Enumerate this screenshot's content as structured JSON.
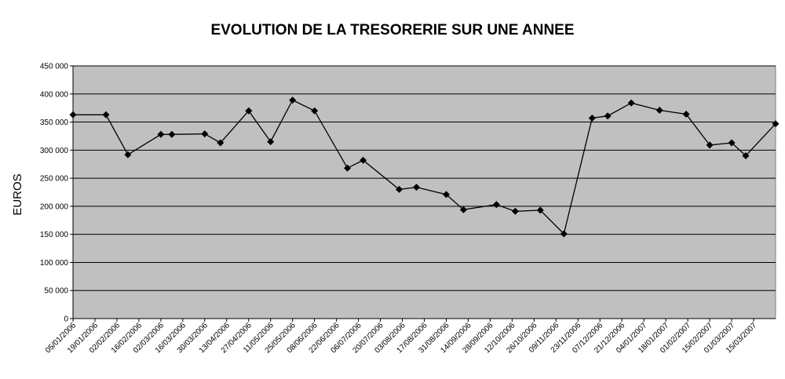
{
  "chart_data": {
    "type": "line",
    "title": "EVOLUTION DE LA TRESORERIE SUR UNE ANNEE",
    "xlabel": "",
    "ylabel": "EUROS",
    "ylim": [
      0,
      450000
    ],
    "yticks": [
      "0",
      "50 000",
      "100 000",
      "150 000",
      "200 000",
      "250 000",
      "300 000",
      "350 000",
      "400 000",
      "450 000"
    ],
    "xtick_labels": [
      "05/01/2006",
      "19/01/2006",
      "02/02/2006",
      "16/02/2006",
      "02/03/2006",
      "16/03/2006",
      "30/03/2006",
      "13/04/2006",
      "27/04/2006",
      "11/05/2006",
      "25/05/2006",
      "08/06/2006",
      "22/06/2006",
      "06/07/2006",
      "20/07/2006",
      "03/08/2006",
      "17/08/2006",
      "31/08/2006",
      "14/09/2006",
      "28/09/2006",
      "12/10/2006",
      "26/10/2006",
      "09/11/2006",
      "23/11/2006",
      "07/12/2006",
      "21/12/2006",
      "04/01/2007",
      "18/01/2007",
      "01/02/2007",
      "15/02/2007",
      "01/03/2007",
      "15/03/2007"
    ],
    "x_range": [
      "2006-01-05",
      "2007-03-29"
    ],
    "grid": true,
    "plot_background": "#c0c0c0",
    "line_color": "#000000",
    "marker": "diamond",
    "series": [
      {
        "x": [
          "2006-01-05",
          "2006-01-26",
          "2006-02-09",
          "2006-03-02",
          "2006-03-09",
          "2006-03-30",
          "2006-04-09",
          "2006-04-27",
          "2006-05-11",
          "2006-05-25",
          "2006-06-08",
          "2006-06-29",
          "2006-07-09",
          "2006-08-01",
          "2006-08-12",
          "2006-08-31",
          "2006-09-11",
          "2006-10-02",
          "2006-10-14",
          "2006-10-30",
          "2006-11-14",
          "2006-12-02",
          "2006-12-12",
          "2006-12-27",
          "2007-01-14",
          "2007-01-31",
          "2007-02-15",
          "2007-03-01",
          "2007-03-10",
          "2007-03-29"
        ],
        "y": [
          363000,
          363000,
          292000,
          328000,
          328000,
          329000,
          313000,
          370000,
          315000,
          389000,
          370000,
          268000,
          282000,
          230000,
          234000,
          221000,
          194000,
          203000,
          191000,
          193000,
          151000,
          357000,
          361000,
          384000,
          371000,
          364000,
          309000,
          313000,
          290000,
          347000
        ]
      }
    ]
  }
}
